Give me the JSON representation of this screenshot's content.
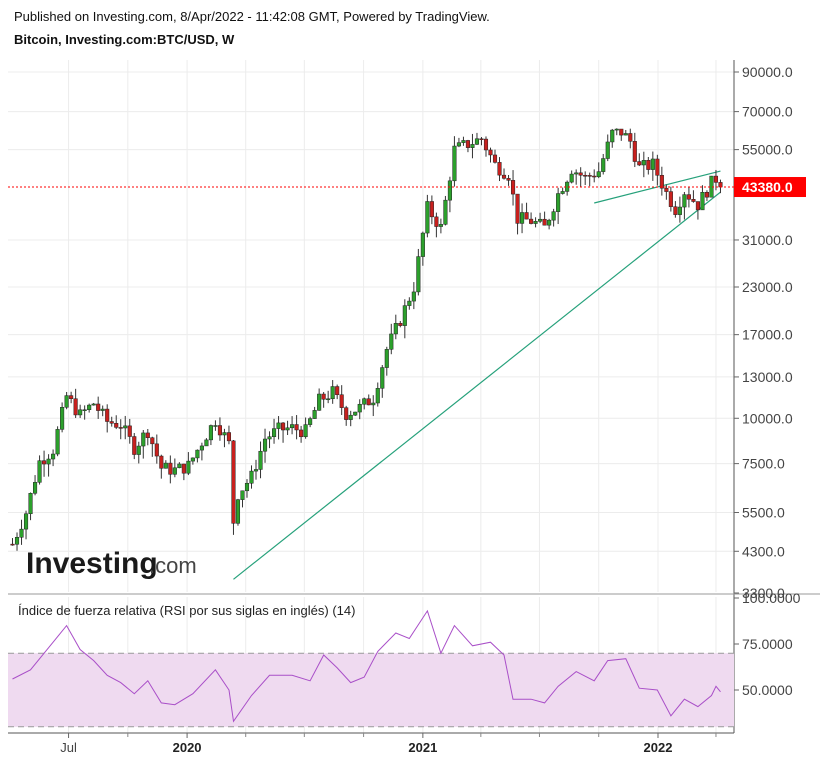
{
  "header": {
    "published": "Published on Investing.com, 8/Apr/2022 - 11:42:08 GMT, Powered by TradingView.",
    "symbol": "Bitcoin, Investing.com:BTC/USD, W"
  },
  "logo": {
    "word": "Investing",
    "suffix": ".com"
  },
  "colors": {
    "up": "#2ca02c",
    "down": "#c8201e",
    "wick": "#333333",
    "trend": "#26a17b",
    "price_line": "#ff0000",
    "rsi": "#a94fc8",
    "rsi_band": "#efdaf0"
  },
  "chart_data": [
    {
      "type": "candlestick",
      "title": "Bitcoin, Investing.com:BTC/USD, W",
      "scale": "log",
      "ylim": [
        3300,
        100000
      ],
      "y_ticks": [
        "90000.0",
        "70000.0",
        "55000.0",
        "31000.0",
        "23000.0",
        "17000.0",
        "13000.0",
        "10000.0",
        "7500.0",
        "5500.0",
        "4300.0",
        "3300.0"
      ],
      "x_ticks": [
        "Jul",
        "2020",
        "2021",
        "2022"
      ],
      "last_price": "43380.0",
      "price_points": [
        [
          "2019-04-05",
          4500
        ],
        [
          "2019-04-26",
          5500
        ],
        [
          "2019-05-17",
          7600
        ],
        [
          "2019-06-07",
          8200
        ],
        [
          "2019-06-28",
          11500
        ],
        [
          "2019-07-19",
          10200
        ],
        [
          "2019-08-09",
          11000
        ],
        [
          "2019-08-30",
          9800
        ],
        [
          "2019-09-20",
          9600
        ],
        [
          "2019-10-11",
          8300
        ],
        [
          "2019-11-01",
          9250
        ],
        [
          "2019-11-22",
          7300
        ],
        [
          "2019-12-13",
          7200
        ],
        [
          "2020-01-03",
          7400
        ],
        [
          "2020-01-24",
          8600
        ],
        [
          "2020-02-14",
          9900
        ],
        [
          "2020-03-06",
          8500
        ],
        [
          "2020-03-13",
          5200
        ],
        [
          "2020-03-20",
          6200
        ],
        [
          "2020-04-10",
          6900
        ],
        [
          "2020-05-01",
          8800
        ],
        [
          "2020-05-22",
          9300
        ],
        [
          "2020-06-12",
          9400
        ],
        [
          "2020-07-03",
          9200
        ],
        [
          "2020-07-24",
          11200
        ],
        [
          "2020-08-14",
          11800
        ],
        [
          "2020-09-04",
          10300
        ],
        [
          "2020-09-25",
          10700
        ],
        [
          "2020-10-16",
          11400
        ],
        [
          "2020-11-06",
          15500
        ],
        [
          "2020-11-27",
          18700
        ],
        [
          "2020-12-18",
          23000
        ],
        [
          "2021-01-08",
          38000
        ],
        [
          "2021-01-29",
          33500
        ],
        [
          "2021-02-19",
          55000
        ],
        [
          "2021-03-12",
          57000
        ],
        [
          "2021-04-02",
          59000
        ],
        [
          "2021-04-23",
          50000
        ],
        [
          "2021-05-14",
          47000
        ],
        [
          "2021-05-28",
          35500
        ],
        [
          "2021-06-18",
          35000
        ],
        [
          "2021-07-09",
          33500
        ],
        [
          "2021-07-30",
          41500
        ],
        [
          "2021-08-20",
          48800
        ],
        [
          "2021-09-10",
          46000
        ],
        [
          "2021-10-01",
          48000
        ],
        [
          "2021-10-22",
          61000
        ],
        [
          "2021-11-05",
          61500
        ],
        [
          "2021-11-19",
          58000
        ],
        [
          "2021-12-03",
          49000
        ],
        [
          "2021-12-24",
          50000
        ],
        [
          "2022-01-14",
          41800
        ],
        [
          "2022-01-28",
          37800
        ],
        [
          "2022-02-11",
          42300
        ],
        [
          "2022-03-04",
          38800
        ],
        [
          "2022-03-25",
          44500
        ],
        [
          "2022-04-01",
          45800
        ],
        [
          "2022-04-08",
          43380
        ]
      ],
      "trendlines": [
        {
          "from": [
            "2020-03-13",
            3600
          ],
          "to": [
            "2022-04-08",
            42000
          ]
        },
        {
          "from": [
            "2021-09-24",
            39200
          ],
          "to": [
            "2022-04-08",
            48000
          ]
        }
      ]
    },
    {
      "type": "line",
      "title": "Índice de fuerza relativa (RSI por sus siglas en inglés) (14)",
      "ylim": [
        30,
        100
      ],
      "y_ticks": [
        "100.0000",
        "75.0000",
        "50.0000"
      ],
      "band": [
        30,
        70
      ],
      "series": [
        {
          "name": "RSI",
          "points": [
            [
              "2019-04-05",
              56
            ],
            [
              "2019-05-03",
              61
            ],
            [
              "2019-06-07",
              76
            ],
            [
              "2019-06-28",
              85
            ],
            [
              "2019-07-19",
              72
            ],
            [
              "2019-08-09",
              66
            ],
            [
              "2019-08-30",
              58
            ],
            [
              "2019-09-20",
              54
            ],
            [
              "2019-10-11",
              48
            ],
            [
              "2019-11-01",
              55
            ],
            [
              "2019-11-22",
              43
            ],
            [
              "2019-12-13",
              42
            ],
            [
              "2020-01-10",
              48
            ],
            [
              "2020-02-14",
              61
            ],
            [
              "2020-03-06",
              50
            ],
            [
              "2020-03-13",
              33
            ],
            [
              "2020-04-10",
              47
            ],
            [
              "2020-05-08",
              58
            ],
            [
              "2020-06-12",
              58
            ],
            [
              "2020-07-10",
              55
            ],
            [
              "2020-07-31",
              69
            ],
            [
              "2020-08-21",
              62
            ],
            [
              "2020-09-11",
              54
            ],
            [
              "2020-10-02",
              57
            ],
            [
              "2020-10-23",
              71
            ],
            [
              "2020-11-20",
              81
            ],
            [
              "2020-12-11",
              78
            ],
            [
              "2021-01-08",
              93
            ],
            [
              "2021-01-29",
              70
            ],
            [
              "2021-02-19",
              85
            ],
            [
              "2021-03-19",
              74
            ],
            [
              "2021-04-16",
              76
            ],
            [
              "2021-05-07",
              69
            ],
            [
              "2021-05-21",
              45
            ],
            [
              "2021-06-18",
              45
            ],
            [
              "2021-07-09",
              43
            ],
            [
              "2021-07-30",
              52
            ],
            [
              "2021-08-27",
              60
            ],
            [
              "2021-09-24",
              55
            ],
            [
              "2021-10-15",
              66
            ],
            [
              "2021-11-12",
              67
            ],
            [
              "2021-12-03",
              51
            ],
            [
              "2021-12-31",
              50
            ],
            [
              "2022-01-21",
              36
            ],
            [
              "2022-02-11",
              45
            ],
            [
              "2022-03-04",
              41
            ],
            [
              "2022-03-25",
              47
            ],
            [
              "2022-04-01",
              52
            ],
            [
              "2022-04-08",
              49
            ]
          ]
        }
      ]
    }
  ]
}
